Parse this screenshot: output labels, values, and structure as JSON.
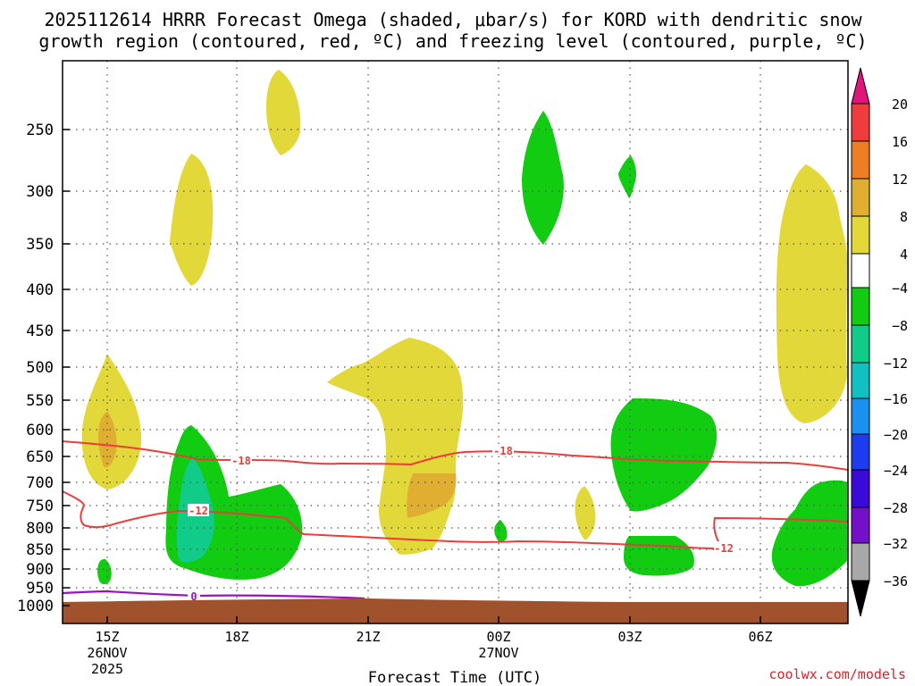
{
  "chart_data": {
    "type": "heatmap",
    "title_lines": [
      "2025112614 HRRR Forecast Omega (shaded, μbar/s) for KORD with dendritic snow",
      "growth region (contoured, red, ºC) and freezing level (contoured, purple, ºC)"
    ],
    "xlabel": "Forecast Time (UTC)",
    "credit": "coolwx.com/models",
    "y_axis": {
      "unit": "hPa",
      "scale": "log",
      "ylim": [
        1030,
        200
      ],
      "ticks": [
        250,
        300,
        350,
        400,
        450,
        500,
        550,
        600,
        650,
        700,
        750,
        800,
        850,
        900,
        950,
        1000
      ]
    },
    "x_axis": {
      "range_hours_utc": [
        "2025-11-26 14Z",
        "2025-11-27 08Z"
      ],
      "ticks": [
        {
          "label": "15Z",
          "sub": [
            "26NOV",
            "2025"
          ]
        },
        {
          "label": "18Z",
          "sub": []
        },
        {
          "label": "21Z",
          "sub": []
        },
        {
          "label": "00Z",
          "sub": [
            "27NOV"
          ]
        },
        {
          "label": "03Z",
          "sub": []
        },
        {
          "label": "06Z",
          "sub": []
        }
      ]
    },
    "grid": true,
    "colorbar": {
      "unit": "μbar/s",
      "labels": [
        "20",
        "16",
        "12",
        "8",
        "4",
        "−4",
        "−8",
        "−12",
        "−16",
        "−20",
        "−24",
        "−28",
        "−32",
        "−36"
      ],
      "colors": [
        "#e0157a",
        "#f03c3c",
        "#ee7e26",
        "#e0ae30",
        "#e3d83a",
        "#ffffff",
        "#11cc11",
        "#10cc88",
        "#11c0c0",
        "#1a90f0",
        "#1c3cee",
        "#3a0ad8",
        "#7410c8",
        "#a010c0",
        "#a8a8a8",
        "#000000"
      ]
    },
    "contour_labels": {
      "red": [
        "-18",
        "-18",
        "-12",
        "-12"
      ],
      "purple": [
        "0"
      ]
    },
    "shaded_regions": [
      {
        "value_range": "4 to 8",
        "time": "19Z",
        "p_top": 220,
        "p_bottom": 270
      },
      {
        "value_range": "4 to 8",
        "time": "17Z",
        "p_top": 275,
        "p_bottom": 395
      },
      {
        "value_range": "4 to 8",
        "time": "15Z",
        "p_top": 480,
        "p_bottom": 700
      },
      {
        "value_range": "8 to 12",
        "time": "15Z",
        "p_top": 585,
        "p_bottom": 655
      },
      {
        "value_range": "4 to 8",
        "time": "22Z",
        "p_top": 465,
        "p_bottom": 860
      },
      {
        "value_range": "8 to 12",
        "time": "22Z",
        "p_top": 700,
        "p_bottom": 770
      },
      {
        "value_range": "4 to 8",
        "time": "07Z",
        "p_top": 285,
        "p_bottom": 605
      },
      {
        "value_range": "4 to 8",
        "time": "02Z",
        "p_top": 700,
        "p_bottom": 830
      },
      {
        "value_range": "-8 to -4",
        "time": "01Z",
        "p_top": 235,
        "p_bottom": 350
      },
      {
        "value_range": "-8 to -4",
        "time": "03Z",
        "p_top": 275,
        "p_bottom": 310
      },
      {
        "value_range": "-8 to -4",
        "time": "03Z",
        "p_top": 555,
        "p_bottom": 740
      },
      {
        "value_range": "-8 to -4",
        "time": "03Z",
        "p_top": 815,
        "p_bottom": 905
      },
      {
        "value_range": "-8 to -4",
        "time": "17Z",
        "p_top": 610,
        "p_bottom": 905
      },
      {
        "value_range": "-12 to -8",
        "time": "17Z",
        "p_top": 675,
        "p_bottom": 875
      },
      {
        "value_range": "-8 to -4",
        "time": "07Z",
        "p_top": 690,
        "p_bottom": 945
      },
      {
        "value_range": "-8 to -4",
        "time": "15Z",
        "p_top": 880,
        "p_bottom": 925
      },
      {
        "value_range": "-8 to -4",
        "time": "00Z",
        "p_top": 800,
        "p_bottom": 840
      }
    ]
  }
}
